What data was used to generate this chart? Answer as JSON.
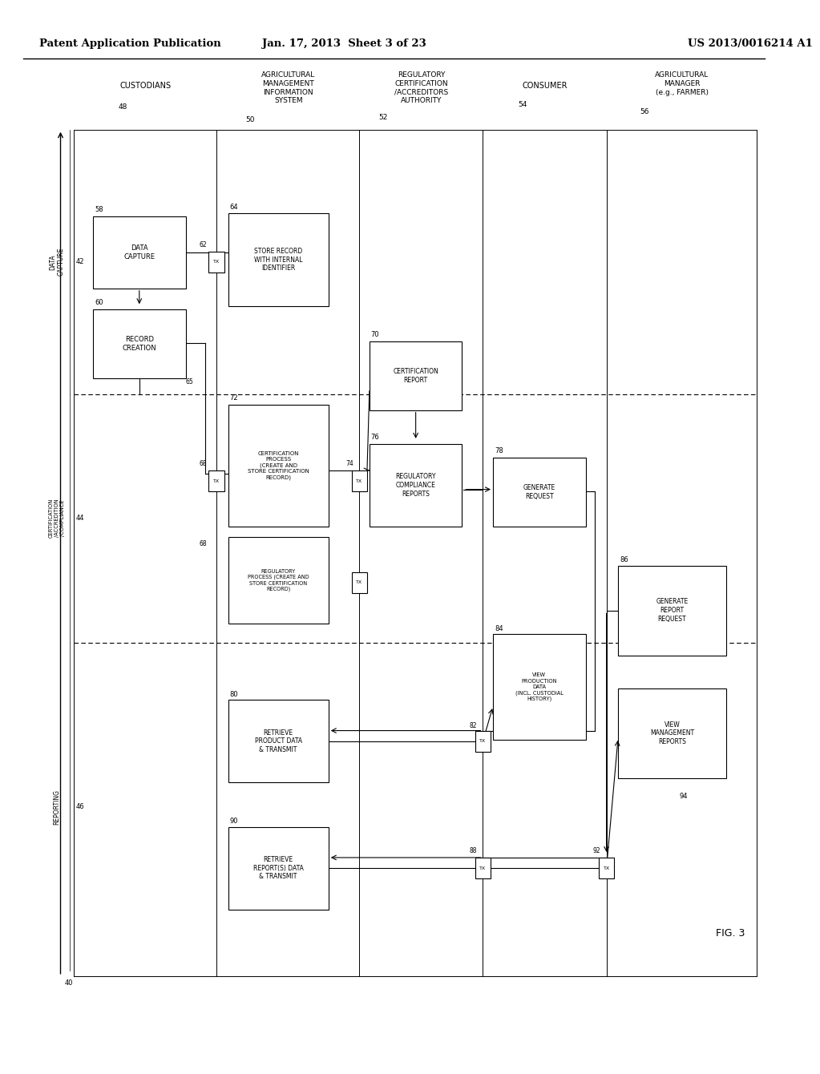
{
  "header_left": "Patent Application Publication",
  "header_mid": "Jan. 17, 2013  Sheet 3 of 23",
  "header_right": "US 2013/0016214 A1",
  "fig_label": "FIG. 3",
  "bg_color": "#ffffff"
}
